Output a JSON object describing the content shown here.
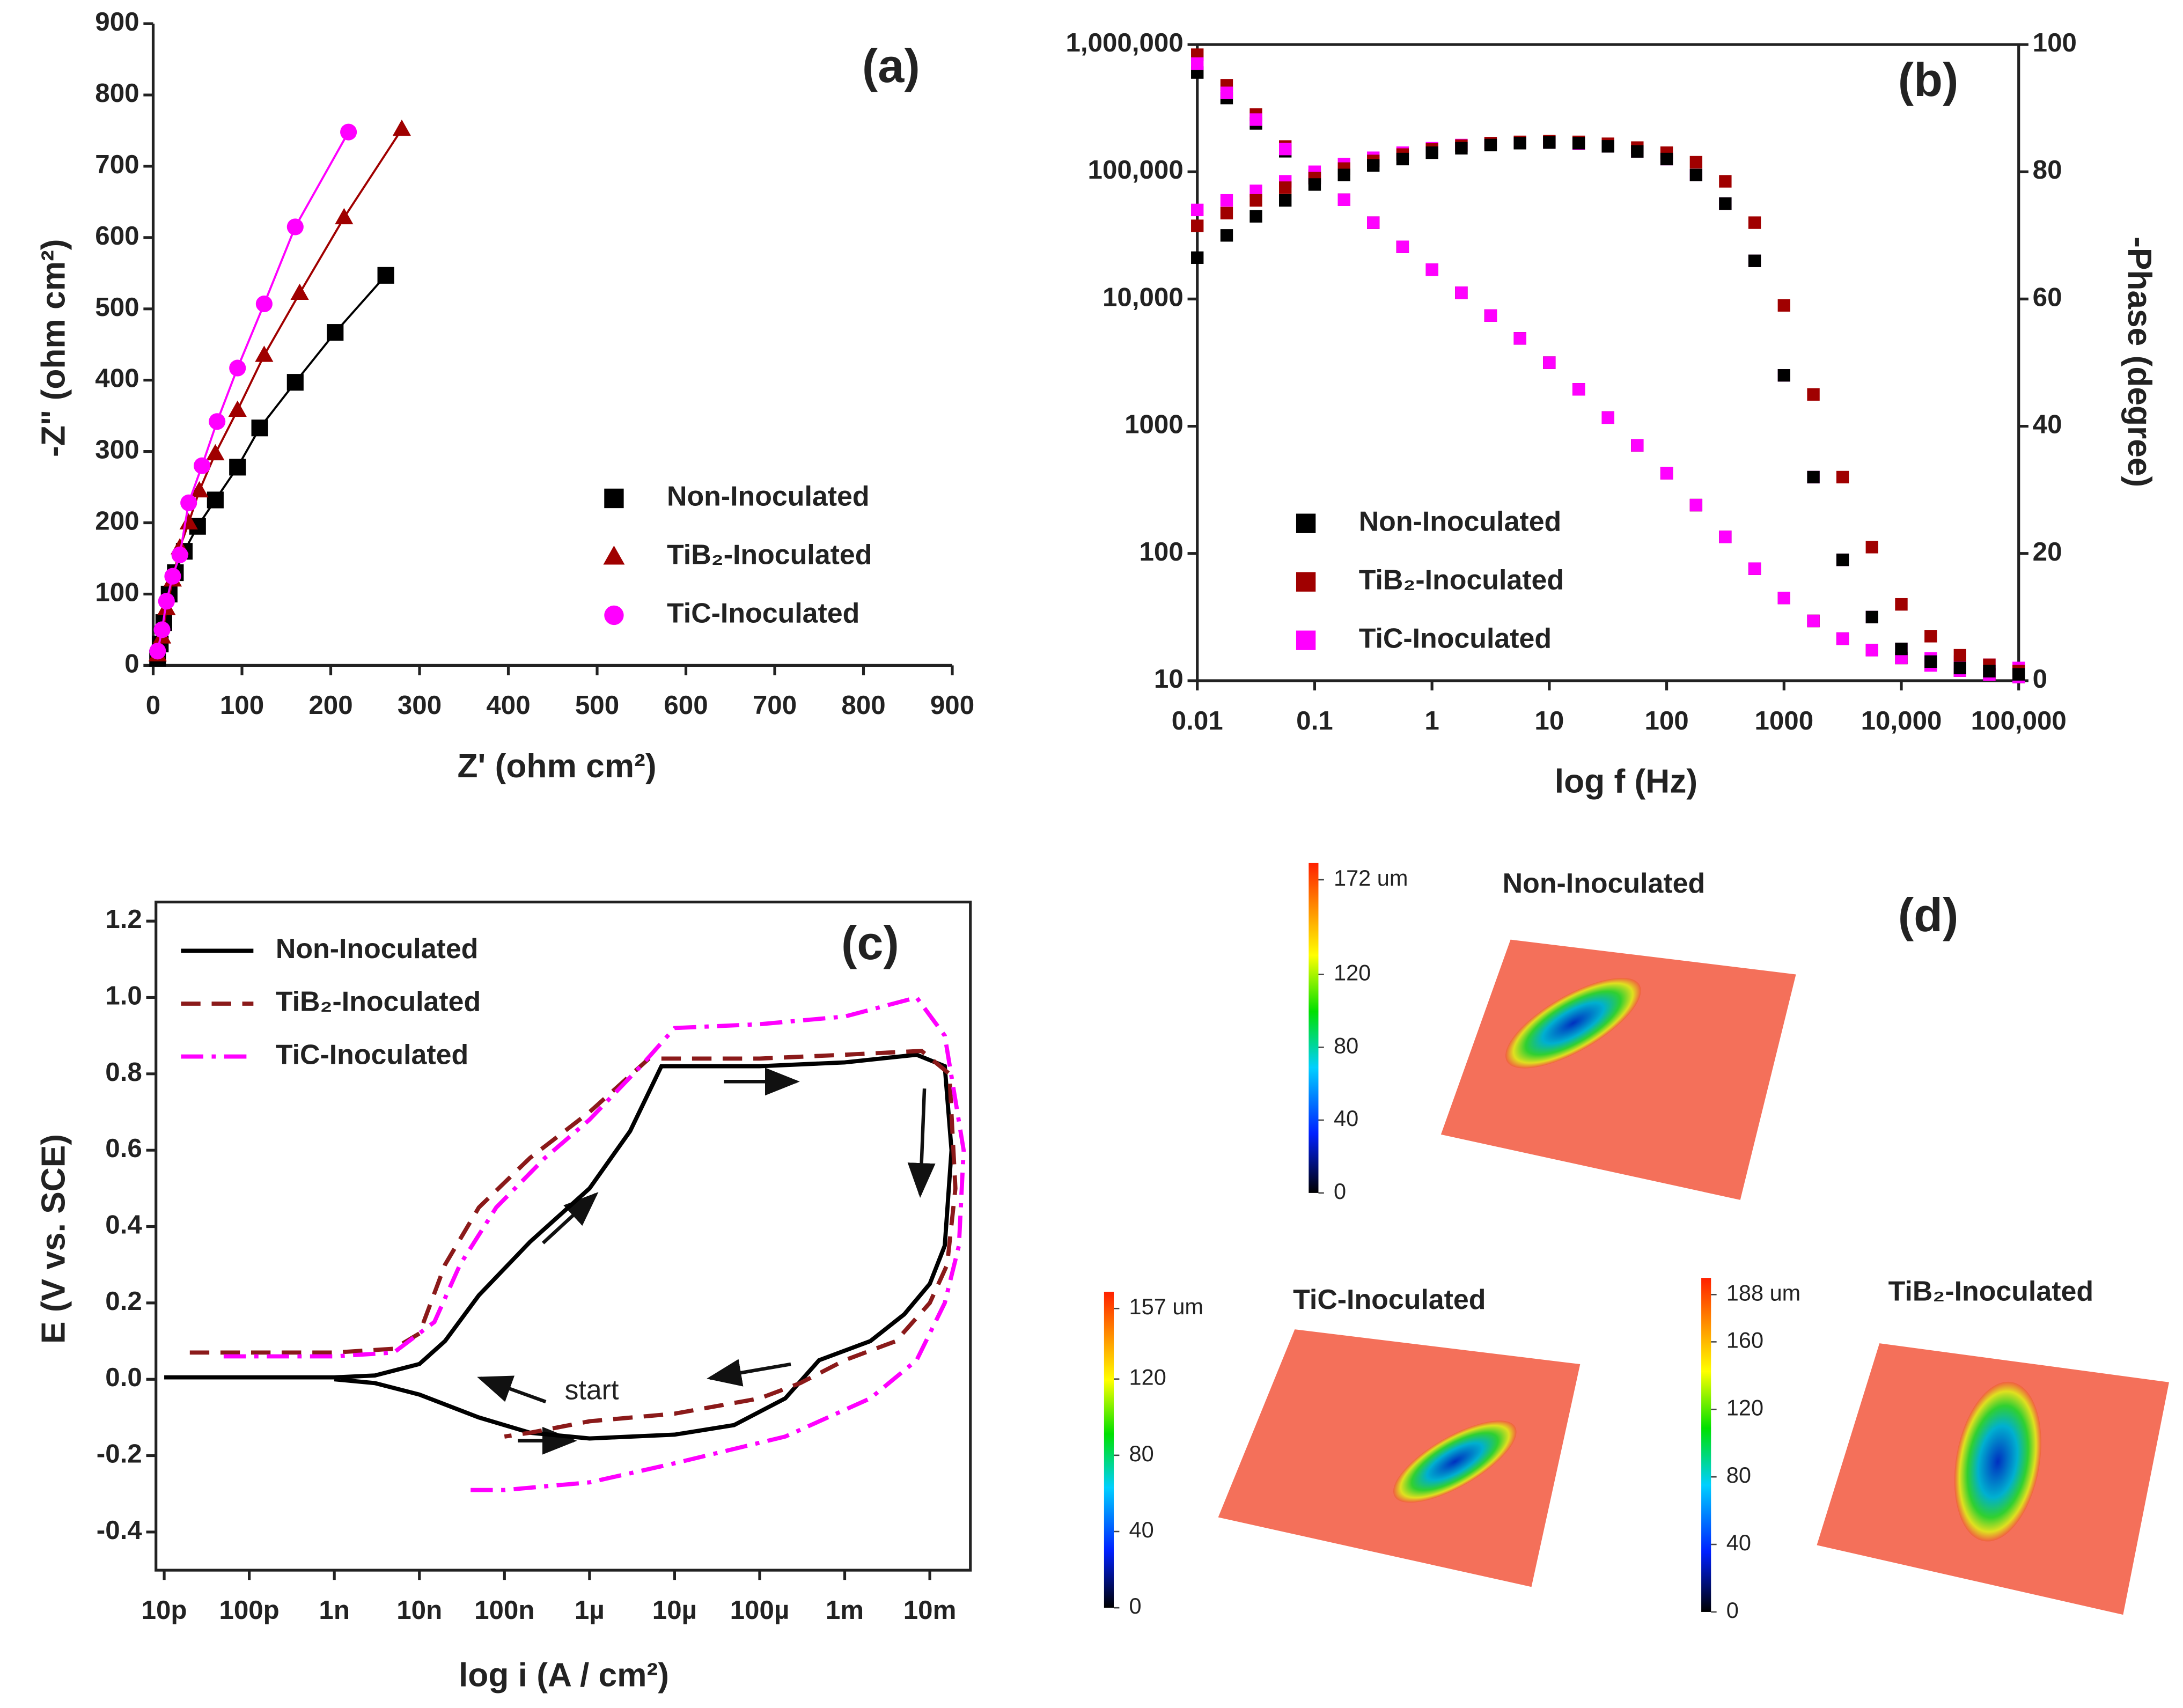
{
  "chart_data": [
    {
      "type": "scatter",
      "panel_label": "(a)",
      "xlabel": "Z' (ohm cm²)",
      "ylabel": "-Z\" (ohm cm²)",
      "xlim": [
        0,
        900
      ],
      "xticks": [
        0,
        100,
        200,
        300,
        400,
        500,
        600,
        700,
        800,
        900
      ],
      "ylim": [
        0,
        900
      ],
      "yticks": [
        0,
        100,
        200,
        300,
        400,
        500,
        600,
        700,
        800,
        900
      ],
      "connect": true,
      "series": [
        {
          "name": "Non-Inoculated",
          "color": "#000000",
          "marker": "square",
          "x": [
            5,
            8,
            12,
            18,
            25,
            35,
            50,
            70,
            95,
            120,
            160,
            205,
            262
          ],
          "values": [
            10,
            30,
            60,
            100,
            130,
            160,
            195,
            232,
            278,
            333,
            397,
            467,
            547
          ]
        },
        {
          "name": "TiB₂-Inoculated",
          "color": "#a00000",
          "marker": "triangle",
          "x": [
            5,
            10,
            15,
            22,
            30,
            40,
            52,
            70,
            95,
            125,
            165,
            215,
            280
          ],
          "values": [
            15,
            40,
            80,
            120,
            165,
            200,
            245,
            297,
            358,
            435,
            522,
            628,
            752
          ]
        },
        {
          "name": "TiC-Inoculated",
          "color": "#ff00ff",
          "marker": "circle",
          "x": [
            5,
            10,
            15,
            22,
            30,
            40,
            55,
            72,
            95,
            125,
            160,
            220
          ],
          "values": [
            20,
            50,
            90,
            125,
            155,
            228,
            280,
            342,
            417,
            507,
            615,
            748
          ]
        }
      ]
    },
    {
      "type": "scatter",
      "panel_label": "(b)",
      "xlabel": "log f (Hz)",
      "y2label": "-Phase (degree)",
      "xscale": "log",
      "yscale": "log",
      "xlim": [
        0.01,
        100000
      ],
      "xticks": [
        0.01,
        0.1,
        1,
        10,
        100,
        1000,
        {
          "value": 10000,
          "label": "10,000"
        },
        {
          "value": 100000,
          "label": "100,000"
        }
      ],
      "ylim": [
        10,
        1000000
      ],
      "yticks": [
        10,
        100,
        1000,
        {
          "value": 10000,
          "label": "10,000"
        },
        {
          "value": 100000,
          "label": "100,000"
        },
        {
          "value": 1000000,
          "label": "1,000,000"
        }
      ],
      "y2lim": [
        0,
        100
      ],
      "y2ticks": [
        0,
        20,
        40,
        60,
        80,
        100
      ],
      "x": [
        0.01,
        0.0178,
        0.0316,
        0.0562,
        0.1,
        0.178,
        0.316,
        0.562,
        1,
        1.78,
        3.16,
        5.62,
        10,
        17.8,
        31.6,
        56.2,
        100,
        178,
        316,
        562,
        1000,
        1780,
        3160,
        5620,
        10000,
        17800,
        31600,
        56200,
        100000
      ],
      "series": [
        {
          "name": "Non-Inoculated",
          "color": "#000000",
          "marker": "square",
          "values": [
            603000,
            380000,
            240000,
            145000,
            89100,
            60300,
            39800,
            25700,
            17000,
            11200,
            7410,
            4900,
            3160,
            1950,
            1170,
            708,
            427,
            240,
            135,
            75.9,
            44.7,
            29.5,
            21.4,
            17.4,
            15.1,
            13.2,
            12,
            11.2,
            10.7
          ]
        },
        {
          "name": "TiB₂-Inoculated",
          "color": "#a00000",
          "marker": "square",
          "values": [
            832000,
            479000,
            282000,
            158000,
            93300,
            60300,
            39800,
            25700,
            17000,
            11200,
            7410,
            4900,
            3160,
            1950,
            1170,
            708,
            427,
            240,
            135,
            75.9,
            44.7,
            29.5,
            21.4,
            17.4,
            15.1,
            13.2,
            12,
            11.2,
            10.7
          ]
        },
        {
          "name": "TiC-Inoculated",
          "color": "#ff00ff",
          "marker": "square",
          "values": [
            708000,
            417000,
            257000,
            151000,
            91200,
            60300,
            39800,
            25700,
            17000,
            11200,
            7410,
            4900,
            3160,
            1950,
            1170,
            708,
            427,
            240,
            135,
            75.9,
            44.7,
            29.5,
            21.4,
            17.4,
            15.1,
            13.2,
            12,
            11.2,
            10.7
          ]
        },
        {
          "axis": "y2",
          "color": "#ff00ff",
          "marker": "square",
          "values": [
            74,
            75.5,
            77,
            78.5,
            80,
            81.2,
            82.2,
            83,
            83.7,
            84.2,
            84.5,
            84.6,
            84.6,
            84.4,
            84,
            83.2,
            82,
            79.5,
            75,
            66,
            48,
            32,
            19,
            10,
            5,
            3.5,
            3,
            2.5,
            2
          ]
        },
        {
          "axis": "y2",
          "color": "#a00000",
          "marker": "square",
          "values": [
            71.5,
            73.5,
            75.5,
            77.5,
            79,
            80.5,
            81.7,
            82.7,
            83.5,
            84.1,
            84.5,
            84.7,
            84.8,
            84.7,
            84.4,
            83.8,
            83,
            81.5,
            78.5,
            72,
            59,
            45,
            32,
            21,
            12,
            7,
            4,
            2.5,
            1.5
          ]
        },
        {
          "axis": "y2",
          "color": "#000000",
          "marker": "square",
          "values": [
            66.5,
            70,
            73,
            75.5,
            78,
            79.5,
            81,
            82,
            83,
            83.7,
            84.2,
            84.5,
            84.6,
            84.5,
            84,
            83.2,
            82,
            79.5,
            75,
            66,
            48,
            32,
            19,
            10,
            5,
            3,
            2,
            1.5,
            1
          ]
        }
      ]
    },
    {
      "type": "line",
      "panel_label": "(c)",
      "xlabel": "log i (A / cm²)",
      "ylabel": "E (V vs. SCE)",
      "xscale": "log",
      "xlim": [
        8e-12,
        0.03
      ],
      "xticks": [
        {
          "value": 1e-11,
          "label": "10p"
        },
        {
          "value": 1e-10,
          "label": "100p"
        },
        {
          "value": 1e-09,
          "label": "1n"
        },
        {
          "value": 1e-08,
          "label": "10n"
        },
        {
          "value": 1e-07,
          "label": "100n"
        },
        {
          "value": 1e-06,
          "label": "1µ"
        },
        {
          "value": 1e-05,
          "label": "10µ"
        },
        {
          "value": 0.0001,
          "label": "100µ"
        },
        {
          "value": 0.001,
          "label": "1m"
        },
        {
          "value": 0.01,
          "label": "10m"
        }
      ],
      "ylim": [
        -0.5,
        1.25
      ],
      "yticks": [
        -0.4,
        -0.2,
        {
          "value": 0,
          "label": "0.0"
        },
        0.2,
        0.4,
        0.6,
        0.8,
        {
          "value": 1,
          "label": "1.0"
        },
        1.2
      ],
      "annotation": "start",
      "series": [
        {
          "name": "Non-Inoculated",
          "color": "#000000",
          "dash": "solid",
          "x": [
            1e-11,
            1e-09,
            3e-09,
            1e-08,
            2e-08,
            5e-08,
            2e-07,
            1e-06,
            3e-06,
            7e-06,
            0.0001,
            0.001,
            0.007,
            0.015,
            0.018,
            0.015,
            0.01,
            0.005,
            0.002,
            0.0005,
            0.0002,
            5e-05,
            1e-05,
            1e-06,
            2e-07,
            5e-08,
            1e-08,
            3e-09,
            1e-09
          ],
          "values": [
            0.005,
            0.005,
            0.01,
            0.04,
            0.1,
            0.22,
            0.36,
            0.5,
            0.65,
            0.82,
            0.82,
            0.83,
            0.85,
            0.82,
            0.6,
            0.35,
            0.25,
            0.17,
            0.1,
            0.05,
            -0.05,
            -0.12,
            -0.145,
            -0.155,
            -0.14,
            -0.1,
            -0.04,
            -0.01,
            0
          ]
        },
        {
          "name": "TiB₂-Inoculated",
          "color": "#8b1a1a",
          "dash": "dashed",
          "x": [
            2e-11,
            1e-09,
            5e-09,
            1e-08,
            2e-08,
            5e-08,
            2e-07,
            1e-06,
            5e-06,
            0.0001,
            0.001,
            0.008,
            0.017,
            0.02,
            0.016,
            0.01,
            0.004,
            0.001,
            0.0003,
            0.0001,
            1e-05,
            1e-06,
            2e-07,
            1e-07
          ],
          "values": [
            0.07,
            0.07,
            0.08,
            0.12,
            0.3,
            0.45,
            0.58,
            0.7,
            0.84,
            0.84,
            0.85,
            0.86,
            0.8,
            0.5,
            0.3,
            0.2,
            0.1,
            0.05,
            -0.01,
            -0.05,
            -0.09,
            -0.11,
            -0.14,
            -0.15
          ]
        },
        {
          "name": "TiC-Inoculated",
          "color": "#ff00ff",
          "dash": "dashdot",
          "x": [
            5e-11,
            1e-09,
            5e-09,
            1.5e-08,
            3e-08,
            8e-08,
            3e-07,
            1e-06,
            4e-06,
            1e-05,
            0.0001,
            0.001,
            0.007,
            0.015,
            0.025,
            0.022,
            0.015,
            0.007,
            0.002,
            0.0002,
            1e-05,
            1e-06,
            1e-07,
            4e-08
          ],
          "values": [
            0.06,
            0.06,
            0.07,
            0.15,
            0.3,
            0.45,
            0.58,
            0.68,
            0.82,
            0.92,
            0.93,
            0.95,
            1,
            0.9,
            0.6,
            0.35,
            0.2,
            0.05,
            -0.05,
            -0.15,
            -0.22,
            -0.27,
            -0.29,
            -0.29
          ]
        }
      ]
    }
  ],
  "panel_d": {
    "label": "(d)",
    "maps": [
      {
        "title": "Non-Inoculated",
        "clim": [
          0,
          172
        ],
        "colorbar": [
          {
            "value": 172,
            "label": "172 um"
          },
          120,
          80,
          40,
          0
        ]
      },
      {
        "title": "TiC-Inoculated",
        "clim": [
          0,
          157
        ],
        "colorbar": [
          {
            "value": 157,
            "label": "157 um"
          },
          120,
          80,
          40,
          0
        ]
      },
      {
        "title": "TiB₂-Inoculated",
        "clim": [
          0,
          188
        ],
        "colorbar": [
          {
            "value": 188,
            "label": "188 um"
          },
          160,
          120,
          80,
          40,
          0
        ]
      }
    ]
  }
}
